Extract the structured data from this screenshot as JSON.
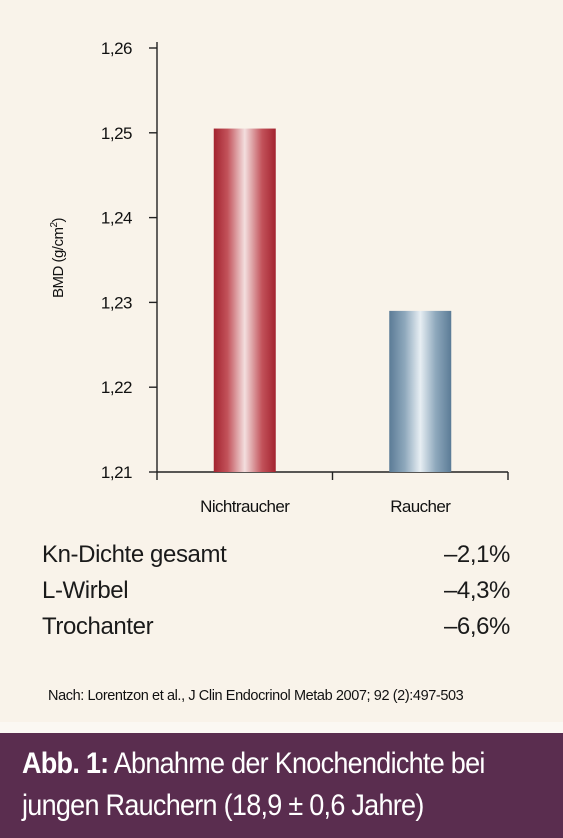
{
  "chart_data": {
    "type": "bar",
    "categories": [
      "Nichtraucher",
      "Raucher"
    ],
    "values": [
      1.2505,
      1.229
    ],
    "ylabel_main": "BMD (g/cm",
    "ylabel_sup": "2",
    "ylabel_close": ")",
    "ylim": [
      1.21,
      1.26
    ],
    "yticks": [
      "1,21",
      "1,22",
      "1,23",
      "1,24",
      "1,25",
      "1,26"
    ],
    "bar_colors": [
      "#b1303a",
      "#6c8aa3"
    ],
    "grid": false
  },
  "stats": [
    {
      "label": "Kn-Dichte gesamt",
      "value": "–2,1%"
    },
    {
      "label": "L-Wirbel",
      "value": "–4,3%"
    },
    {
      "label": "Trochanter",
      "value": "–6,6%"
    }
  ],
  "source": "Nach: Lorentzon et al., J Clin Endocrinol Metab 2007; 92 (2):497-503",
  "caption": {
    "prefix": "Abb. 1:",
    "line1": "Abnahme der Knochendichte bei",
    "line2": "jungen Rauchern (18,9 ± 0,6 Jahre)"
  },
  "colors": {
    "panel": "#f9f3ea",
    "caption_band": "#5a2d4f"
  }
}
